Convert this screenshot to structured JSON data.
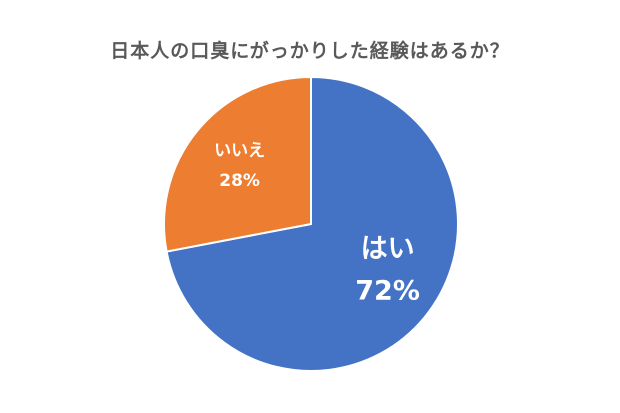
{
  "chart_data": {
    "type": "pie",
    "title": "日本人の口臭にがっかりした経験はあるか？",
    "categories": [
      "はい",
      "いいえ"
    ],
    "values": [
      72,
      28
    ],
    "value_labels": [
      "72%",
      "28%"
    ],
    "colors": [
      "#4472C4",
      "#ED7D31"
    ],
    "start_angle": "12 o'clock",
    "direction": "clockwise",
    "legend": "none",
    "data_labels": "inside slices"
  }
}
